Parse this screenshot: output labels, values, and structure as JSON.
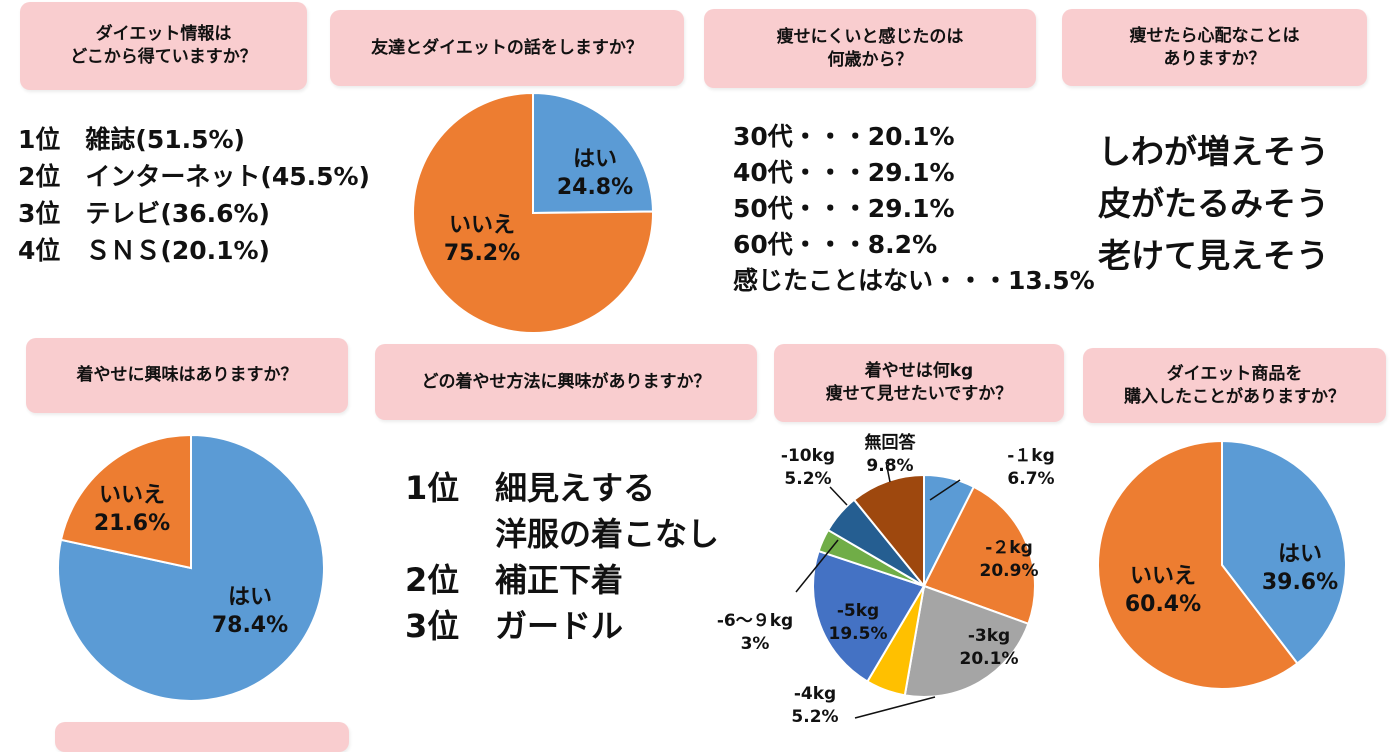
{
  "questions": {
    "q1": "ダイエット情報は\nどこから得ていますか？",
    "q2": "友達とダイエットの話をしますか？",
    "q3": "痩せにくいと感じたのは\n何歳から？",
    "q4": "痩せたら心配なことは\nありますか？",
    "q5": "着やせに興味はありますか？",
    "q6": "どの着やせ方法に興味がありますか？",
    "q7": "着やせは何kg\n痩せて見せたいですか？",
    "q8": "ダイエット商品を\n購入したことがありますか？"
  },
  "info_sources": [
    "1位　雑誌(51.5%)",
    "2位　インターネット(45.5%)",
    "3位　テレビ(36.6%)",
    "4位　ＳＮＳ(20.1%)"
  ],
  "age_answers": [
    "30代・・・20.1%",
    "40代・・・29.1%",
    "50代・・・29.1%",
    "60代・・・8.2%",
    "感じたことはない・・・13.5%"
  ],
  "worries": [
    "しわが増えそう",
    "皮がたるみそう",
    "老けて見えそう"
  ],
  "methods": [
    {
      "rank": "1位",
      "lines": [
        "細見えする",
        "洋服の着こなし"
      ]
    },
    {
      "rank": "2位",
      "lines": [
        "補正下着"
      ]
    },
    {
      "rank": "3位",
      "lines": [
        "ガードル"
      ]
    }
  ],
  "chart_data": [
    {
      "type": "pie",
      "id": "friends",
      "slices": [
        {
          "label": "はい",
          "value": 24.8,
          "value_label": "24.8%",
          "color": "#5b9bd5"
        },
        {
          "label": "いいえ",
          "value": 75.2,
          "value_label": "75.2%",
          "color": "#ed7d31"
        }
      ]
    },
    {
      "type": "pie",
      "id": "interest",
      "slices": [
        {
          "label": "はい",
          "value": 78.4,
          "value_label": "78.4%",
          "color": "#5b9bd5"
        },
        {
          "label": "いいえ",
          "value": 21.6,
          "value_label": "21.6%",
          "color": "#ed7d31"
        }
      ]
    },
    {
      "type": "pie",
      "id": "kg",
      "slices": [
        {
          "label": "-１kg",
          "value": 6.7,
          "value_label": "6.7%",
          "color": "#5b9bd5"
        },
        {
          "label": "-２kg",
          "value": 20.9,
          "value_label": "20.9%",
          "color": "#ed7d31"
        },
        {
          "label": "-3kg",
          "value": 20.1,
          "value_label": "20.1%",
          "color": "#a5a5a5"
        },
        {
          "label": "-4kg",
          "value": 5.2,
          "value_label": "5.2%",
          "color": "#ffc000"
        },
        {
          "label": "-5kg",
          "value": 19.5,
          "value_label": "19.5%",
          "color": "#4472c4"
        },
        {
          "label": "-6～９kg",
          "value": 3,
          "value_label": "3%",
          "color": "#70ad47"
        },
        {
          "label": "-10kg",
          "value": 5.2,
          "value_label": "5.2%",
          "color": "#255e91"
        },
        {
          "label": "無回答",
          "value": 9.8,
          "value_label": "9.8%",
          "color": "#9e480e"
        }
      ]
    },
    {
      "type": "pie",
      "id": "purchase",
      "slices": [
        {
          "label": "はい",
          "value": 39.6,
          "value_label": "39.6%",
          "color": "#5b9bd5"
        },
        {
          "label": "いいえ",
          "value": 60.4,
          "value_label": "60.4%",
          "color": "#ed7d31"
        }
      ]
    }
  ]
}
